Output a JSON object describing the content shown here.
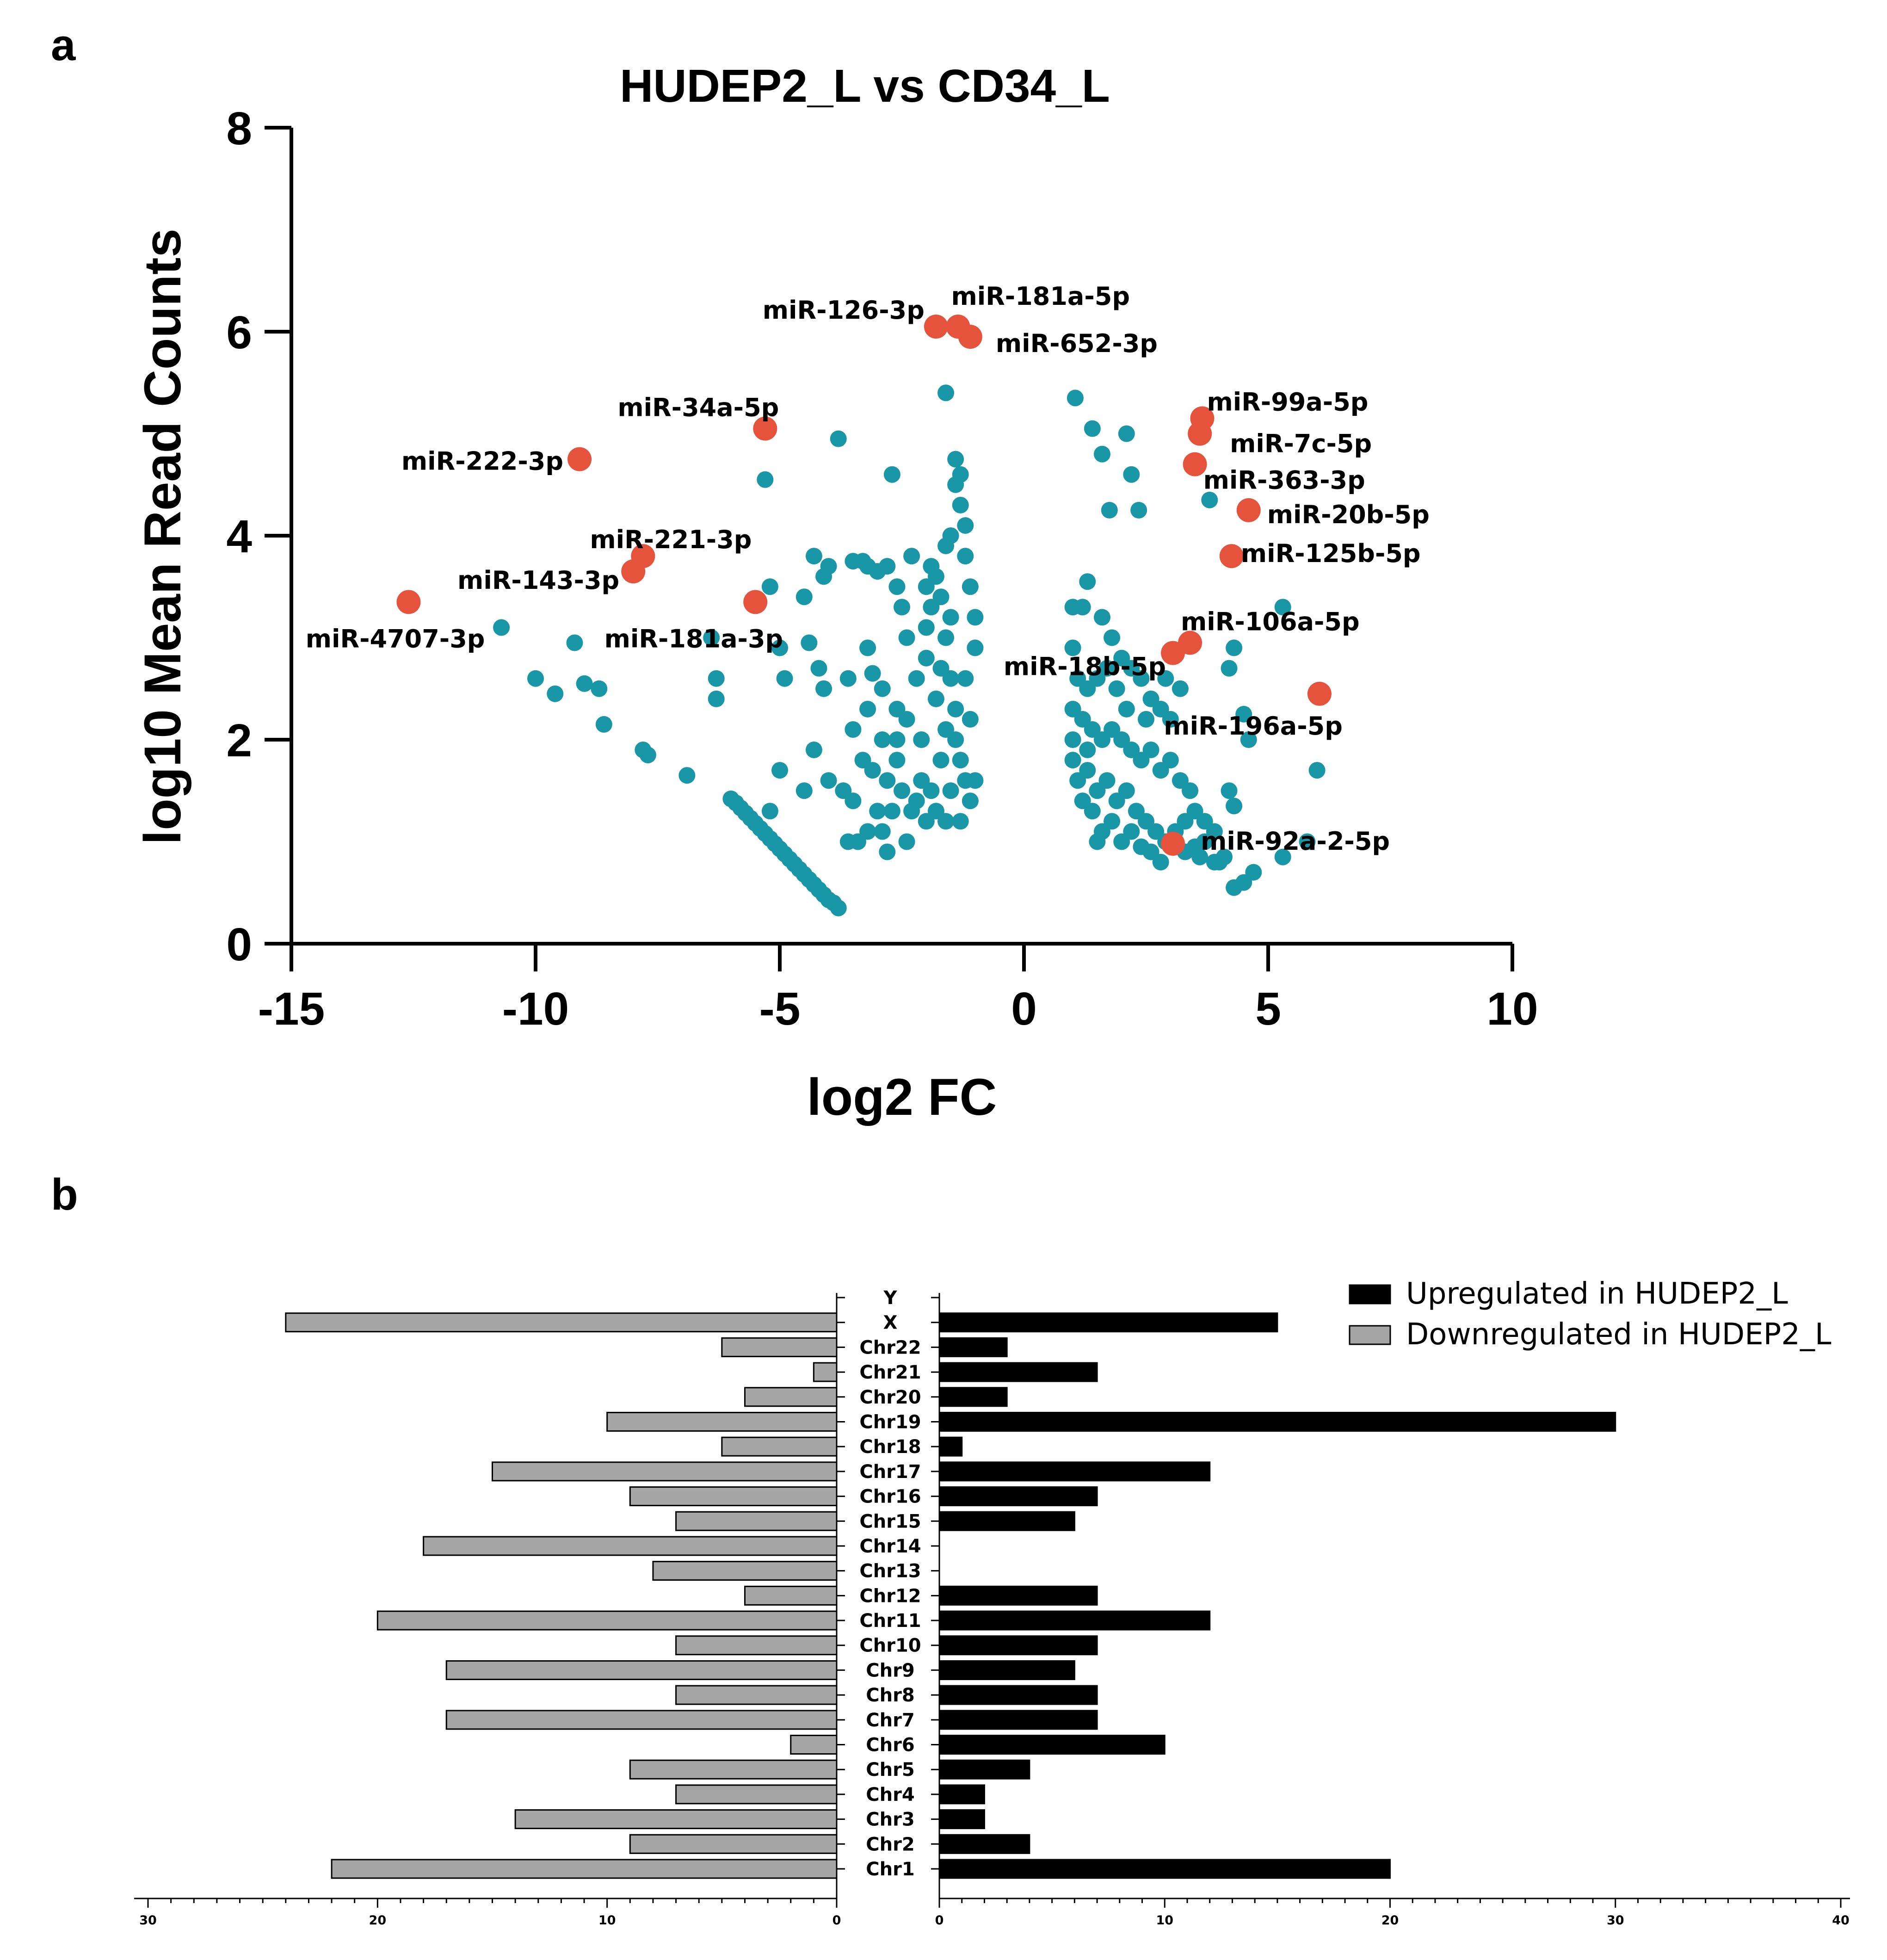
{
  "colors": {
    "point": "#1a97a6",
    "highlight": "#e5533c",
    "up": "#000000",
    "down": "#a6a6a6",
    "axis": "#000000"
  },
  "chart_data": [
    {
      "panel": "a",
      "type": "scatter",
      "title": "HUDEP2_L vs CD34_L",
      "xlabel": "log2 FC",
      "ylabel": "log10 Mean Read Counts",
      "xlim": [
        -15,
        10
      ],
      "ylim": [
        0,
        8
      ],
      "xticks": [
        "-15",
        "-10",
        "-5",
        "0",
        "5",
        "10"
      ],
      "yticks": [
        "0",
        "2",
        "4",
        "6",
        "8"
      ],
      "highlighted": [
        {
          "name": "miR-126-3p",
          "x": -1.8,
          "y": 6.05
        },
        {
          "name": "miR-181a-5p",
          "x": -1.35,
          "y": 6.05
        },
        {
          "name": "miR-652-3p",
          "x": -1.1,
          "y": 5.95
        },
        {
          "name": "miR-34a-5p",
          "x": -5.3,
          "y": 5.05
        },
        {
          "name": "miR-222-3p",
          "x": -9.1,
          "y": 4.75
        },
        {
          "name": "miR-221-3p",
          "x": -7.8,
          "y": 3.8
        },
        {
          "name": "miR-143-3p",
          "x": -8.0,
          "y": 3.65
        },
        {
          "name": "miR-181a-3p",
          "x": -5.5,
          "y": 3.35
        },
        {
          "name": "miR-4707-3p",
          "x": -12.6,
          "y": 3.35
        },
        {
          "name": "miR-99a-5p",
          "x": 3.65,
          "y": 5.15
        },
        {
          "name": "miR-7c-5p",
          "x": 3.6,
          "y": 5.0
        },
        {
          "name": "miR-363-3p",
          "x": 3.5,
          "y": 4.7
        },
        {
          "name": "miR-20b-5p",
          "x": 4.6,
          "y": 4.25
        },
        {
          "name": "miR-125b-5p",
          "x": 4.25,
          "y": 3.8
        },
        {
          "name": "miR-106a-5p",
          "x": 3.4,
          "y": 2.95
        },
        {
          "name": "miR-18b-5p",
          "x": 3.05,
          "y": 2.85
        },
        {
          "name": "miR-196a-5p",
          "x": 6.05,
          "y": 2.45
        },
        {
          "name": "miR-92a-2-5p",
          "x": 3.05,
          "y": 0.98
        }
      ],
      "points": [
        [
          -10.7,
          3.1
        ],
        [
          -9.2,
          2.95
        ],
        [
          -10.0,
          2.6
        ],
        [
          -9.6,
          2.45
        ],
        [
          -9.0,
          2.55
        ],
        [
          -8.7,
          2.5
        ],
        [
          -8.6,
          2.15
        ],
        [
          -7.8,
          1.9
        ],
        [
          -7.7,
          1.85
        ],
        [
          -6.9,
          1.65
        ],
        [
          -6.4,
          3.0
        ],
        [
          -6.3,
          2.6
        ],
        [
          -6.3,
          2.4
        ],
        [
          -5.2,
          3.5
        ],
        [
          -5.3,
          4.55
        ],
        [
          -3.8,
          4.95
        ],
        [
          -2.7,
          4.6
        ],
        [
          -1.6,
          5.4
        ],
        [
          -5.0,
          2.9
        ],
        [
          -4.9,
          2.6
        ],
        [
          -4.5,
          3.4
        ],
        [
          -4.4,
          2.95
        ],
        [
          -4.2,
          2.7
        ],
        [
          -4.1,
          2.5
        ],
        [
          -4.1,
          3.6
        ],
        [
          -4.0,
          3.7
        ],
        [
          -4.3,
          3.8
        ],
        [
          -3.5,
          3.75
        ],
        [
          -3.3,
          3.75
        ],
        [
          -3.2,
          3.7
        ],
        [
          -3.0,
          3.65
        ],
        [
          -2.8,
          3.7
        ],
        [
          -2.6,
          3.5
        ],
        [
          -3.2,
          2.9
        ],
        [
          -3.1,
          2.65
        ],
        [
          -3.2,
          2.3
        ],
        [
          -2.9,
          2.5
        ],
        [
          -3.5,
          2.1
        ],
        [
          -3.3,
          1.8
        ],
        [
          -3.1,
          1.7
        ],
        [
          -2.8,
          1.6
        ],
        [
          -2.6,
          1.8
        ],
        [
          -2.4,
          2.2
        ],
        [
          -2.2,
          2.6
        ],
        [
          -2.0,
          2.8
        ],
        [
          -2.0,
          3.1
        ],
        [
          -2.0,
          3.5
        ],
        [
          -1.9,
          3.3
        ],
        [
          -1.9,
          3.7
        ],
        [
          -1.7,
          3.4
        ],
        [
          -1.6,
          3.0
        ],
        [
          -1.5,
          2.6
        ],
        [
          -1.4,
          2.3
        ],
        [
          -1.4,
          2.0
        ],
        [
          -1.3,
          1.8
        ],
        [
          -1.2,
          1.6
        ],
        [
          -1.1,
          1.4
        ],
        [
          -1.0,
          1.6
        ],
        [
          -1.1,
          2.2
        ],
        [
          -1.2,
          2.6
        ],
        [
          -1.0,
          2.9
        ],
        [
          -1.0,
          3.2
        ],
        [
          -1.1,
          3.5
        ],
        [
          -1.2,
          3.8
        ],
        [
          -1.2,
          4.1
        ],
        [
          -1.3,
          4.3
        ],
        [
          -1.4,
          4.5
        ],
        [
          -1.4,
          4.75
        ],
        [
          -1.3,
          4.6
        ],
        [
          -1.5,
          4.0
        ],
        [
          -1.6,
          3.9
        ],
        [
          -1.8,
          3.6
        ],
        [
          -2.3,
          3.8
        ],
        [
          -2.5,
          3.3
        ],
        [
          -2.4,
          3.0
        ],
        [
          -2.6,
          2.0
        ],
        [
          -2.5,
          1.5
        ],
        [
          -2.3,
          1.3
        ],
        [
          -2.0,
          1.2
        ],
        [
          -1.9,
          1.5
        ],
        [
          -1.7,
          1.8
        ],
        [
          -1.5,
          1.5
        ],
        [
          -1.6,
          2.1
        ],
        [
          -1.8,
          2.4
        ],
        [
          -2.1,
          2.0
        ],
        [
          -2.2,
          1.4
        ],
        [
          -2.7,
          1.3
        ],
        [
          -2.9,
          1.1
        ],
        [
          -3.0,
          1.3
        ],
        [
          -3.2,
          1.1
        ],
        [
          -3.4,
          1.0
        ],
        [
          -3.6,
          1.0
        ],
        [
          -2.8,
          0.9
        ],
        [
          -2.4,
          1.0
        ],
        [
          -3.5,
          1.4
        ],
        [
          -3.7,
          1.5
        ],
        [
          -4.0,
          1.6
        ],
        [
          -4.3,
          1.9
        ],
        [
          -4.5,
          1.5
        ],
        [
          -5.0,
          1.7
        ],
        [
          -5.2,
          1.3
        ],
        [
          -1.3,
          1.2
        ],
        [
          -1.6,
          1.2
        ],
        [
          -1.8,
          1.3
        ],
        [
          -2.1,
          1.6
        ],
        [
          -1.7,
          2.7
        ],
        [
          -1.5,
          3.2
        ],
        [
          -2.9,
          2.0
        ],
        [
          -2.6,
          2.3
        ],
        [
          -3.6,
          2.6
        ],
        [
          -6.0,
          1.42
        ],
        [
          -5.9,
          1.38
        ],
        [
          -5.8,
          1.33
        ],
        [
          -5.7,
          1.28
        ],
        [
          -5.6,
          1.23
        ],
        [
          -5.5,
          1.18
        ],
        [
          -5.4,
          1.13
        ],
        [
          -5.3,
          1.08
        ],
        [
          -5.2,
          1.03
        ],
        [
          -5.1,
          0.98
        ],
        [
          -5.0,
          0.93
        ],
        [
          -4.9,
          0.88
        ],
        [
          -4.8,
          0.83
        ],
        [
          -4.7,
          0.78
        ],
        [
          -4.6,
          0.73
        ],
        [
          -4.5,
          0.68
        ],
        [
          -4.4,
          0.63
        ],
        [
          -4.3,
          0.58
        ],
        [
          -4.2,
          0.53
        ],
        [
          -4.1,
          0.48
        ],
        [
          -4.0,
          0.43
        ],
        [
          -3.9,
          0.4
        ],
        [
          -3.8,
          0.35
        ],
        [
          1.05,
          5.35
        ],
        [
          1.4,
          5.05
        ],
        [
          1.6,
          4.8
        ],
        [
          2.1,
          5.0
        ],
        [
          2.2,
          4.6
        ],
        [
          2.35,
          4.25
        ],
        [
          1.75,
          4.25
        ],
        [
          3.8,
          4.35
        ],
        [
          1.3,
          3.55
        ],
        [
          1.0,
          3.3
        ],
        [
          1.2,
          3.3
        ],
        [
          1.6,
          3.2
        ],
        [
          1.8,
          3.0
        ],
        [
          2.0,
          2.8
        ],
        [
          1.0,
          2.9
        ],
        [
          1.1,
          2.6
        ],
        [
          1.3,
          2.5
        ],
        [
          1.5,
          2.6
        ],
        [
          1.7,
          2.7
        ],
        [
          1.9,
          2.5
        ],
        [
          2.2,
          2.7
        ],
        [
          2.4,
          2.6
        ],
        [
          2.6,
          2.4
        ],
        [
          2.8,
          2.3
        ],
        [
          3.0,
          2.2
        ],
        [
          3.2,
          2.5
        ],
        [
          1.0,
          2.3
        ],
        [
          1.2,
          2.2
        ],
        [
          1.4,
          2.1
        ],
        [
          1.6,
          2.0
        ],
        [
          1.8,
          2.1
        ],
        [
          2.0,
          2.0
        ],
        [
          2.2,
          1.9
        ],
        [
          2.4,
          1.8
        ],
        [
          2.6,
          1.9
        ],
        [
          2.8,
          1.7
        ],
        [
          3.0,
          1.8
        ],
        [
          3.2,
          1.6
        ],
        [
          3.4,
          1.5
        ],
        [
          1.0,
          1.8
        ],
        [
          1.1,
          1.6
        ],
        [
          1.3,
          1.7
        ],
        [
          1.5,
          1.5
        ],
        [
          1.7,
          1.6
        ],
        [
          1.9,
          1.4
        ],
        [
          2.1,
          1.5
        ],
        [
          2.3,
          1.3
        ],
        [
          2.5,
          1.2
        ],
        [
          2.7,
          1.1
        ],
        [
          2.9,
          1.0
        ],
        [
          3.1,
          1.1
        ],
        [
          3.3,
          0.9
        ],
        [
          3.5,
          0.95
        ],
        [
          1.2,
          1.4
        ],
        [
          1.4,
          1.3
        ],
        [
          1.6,
          1.1
        ],
        [
          1.8,
          1.2
        ],
        [
          2.0,
          1.0
        ],
        [
          2.2,
          1.1
        ],
        [
          2.4,
          0.95
        ],
        [
          2.6,
          0.9
        ],
        [
          2.8,
          0.8
        ],
        [
          3.6,
          0.85
        ],
        [
          3.9,
          0.8
        ],
        [
          4.1,
          0.85
        ],
        [
          4.3,
          0.55
        ],
        [
          4.5,
          0.6
        ],
        [
          4.7,
          0.7
        ],
        [
          5.3,
          0.85
        ],
        [
          5.8,
          1.0
        ],
        [
          6.0,
          1.7
        ],
        [
          5.3,
          3.3
        ],
        [
          4.3,
          2.9
        ],
        [
          4.2,
          2.7
        ],
        [
          4.5,
          2.25
        ],
        [
          4.6,
          2.0
        ],
        [
          4.3,
          1.35
        ],
        [
          4.2,
          1.5
        ],
        [
          3.7,
          1.2
        ],
        [
          3.9,
          1.1
        ],
        [
          4.0,
          0.8
        ],
        [
          1.0,
          2.0
        ],
        [
          1.3,
          1.9
        ],
        [
          2.5,
          2.2
        ],
        [
          2.9,
          2.6
        ],
        [
          3.5,
          1.3
        ],
        [
          3.7,
          1.0
        ],
        [
          3.3,
          1.2
        ],
        [
          2.1,
          2.3
        ],
        [
          1.5,
          1.0
        ]
      ]
    },
    {
      "panel": "b",
      "type": "bar",
      "orientation": "horizontal-butterfly",
      "categories": [
        "Chr1",
        "Chr2",
        "Chr3",
        "Chr4",
        "Chr5",
        "Chr6",
        "Chr7",
        "Chr8",
        "Chr9",
        "Chr10",
        "Chr11",
        "Chr12",
        "Chr13",
        "Chr14",
        "Chr15",
        "Chr16",
        "Chr17",
        "Chr18",
        "Chr19",
        "Chr20",
        "Chr21",
        "Chr22",
        "X",
        "Y"
      ],
      "series": [
        {
          "name": "Upregulated in HUDEP2_L",
          "values": [
            20,
            4,
            2,
            2,
            4,
            10,
            7,
            7,
            6,
            7,
            12,
            7,
            0,
            0,
            6,
            7,
            12,
            1,
            30,
            3,
            7,
            3,
            15,
            0
          ]
        },
        {
          "name": "Downregulated in HUDEP2_L",
          "values": [
            22,
            9,
            14,
            7,
            9,
            2,
            17,
            7,
            17,
            7,
            20,
            4,
            8,
            18,
            7,
            9,
            15,
            5,
            10,
            4,
            1,
            5,
            24,
            0
          ]
        }
      ],
      "left_axis": {
        "range": [
          30,
          0
        ],
        "ticks": [
          "30",
          "20",
          "10",
          "0"
        ]
      },
      "right_axis": {
        "range": [
          0,
          40
        ],
        "ticks": [
          "0",
          "10",
          "20",
          "30",
          "40"
        ]
      },
      "legend_position": "top-right"
    }
  ]
}
